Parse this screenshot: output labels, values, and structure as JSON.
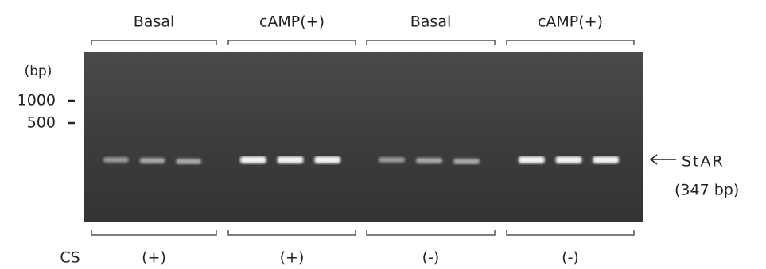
{
  "top_labels": [
    "Basal",
    "cAMP(+)",
    "Basal",
    "cAMP(+)"
  ],
  "markers": {
    "unit": "(bp)",
    "labels": [
      "1000",
      "500"
    ]
  },
  "band_label": {
    "name": "StAR",
    "size": "(347 bp)"
  },
  "bottom": {
    "row_label": "CS",
    "labels": [
      "(+)",
      "(+)",
      "(-)",
      "(-)"
    ]
  }
}
